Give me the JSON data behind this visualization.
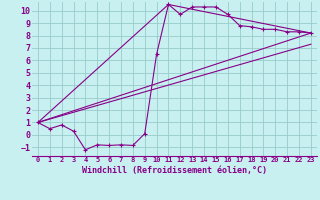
{
  "xlabel": "Windchill (Refroidissement éolien,°C)",
  "bg_color": "#c8f0f0",
  "line_color": "#880088",
  "xlim": [
    -0.5,
    23.5
  ],
  "ylim": [
    -1.7,
    10.7
  ],
  "xticks": [
    0,
    1,
    2,
    3,
    4,
    5,
    6,
    7,
    8,
    9,
    10,
    11,
    12,
    13,
    14,
    15,
    16,
    17,
    18,
    19,
    20,
    21,
    22,
    23
  ],
  "yticks": [
    -1,
    0,
    1,
    2,
    3,
    4,
    5,
    6,
    7,
    8,
    9,
    10
  ],
  "grid_color": "#99cccc",
  "series1_x": [
    0,
    1,
    2,
    3,
    4,
    5,
    6,
    7,
    8,
    9,
    10,
    11,
    12,
    13,
    14,
    15,
    16,
    17,
    18,
    19,
    20,
    21,
    22,
    23
  ],
  "series1_y": [
    1.0,
    0.5,
    0.8,
    0.3,
    -1.2,
    -0.8,
    -0.85,
    -0.8,
    -0.85,
    0.1,
    6.5,
    10.5,
    9.7,
    10.3,
    10.3,
    10.3,
    9.7,
    8.8,
    8.7,
    8.5,
    8.5,
    8.3,
    8.3,
    8.2
  ],
  "series2_x": [
    0,
    23
  ],
  "series2_y": [
    1.0,
    8.2
  ],
  "series3_x": [
    0,
    11,
    23
  ],
  "series3_y": [
    1.0,
    10.5,
    8.2
  ],
  "series4_x": [
    0,
    23
  ],
  "series4_y": [
    1.0,
    7.3
  ]
}
